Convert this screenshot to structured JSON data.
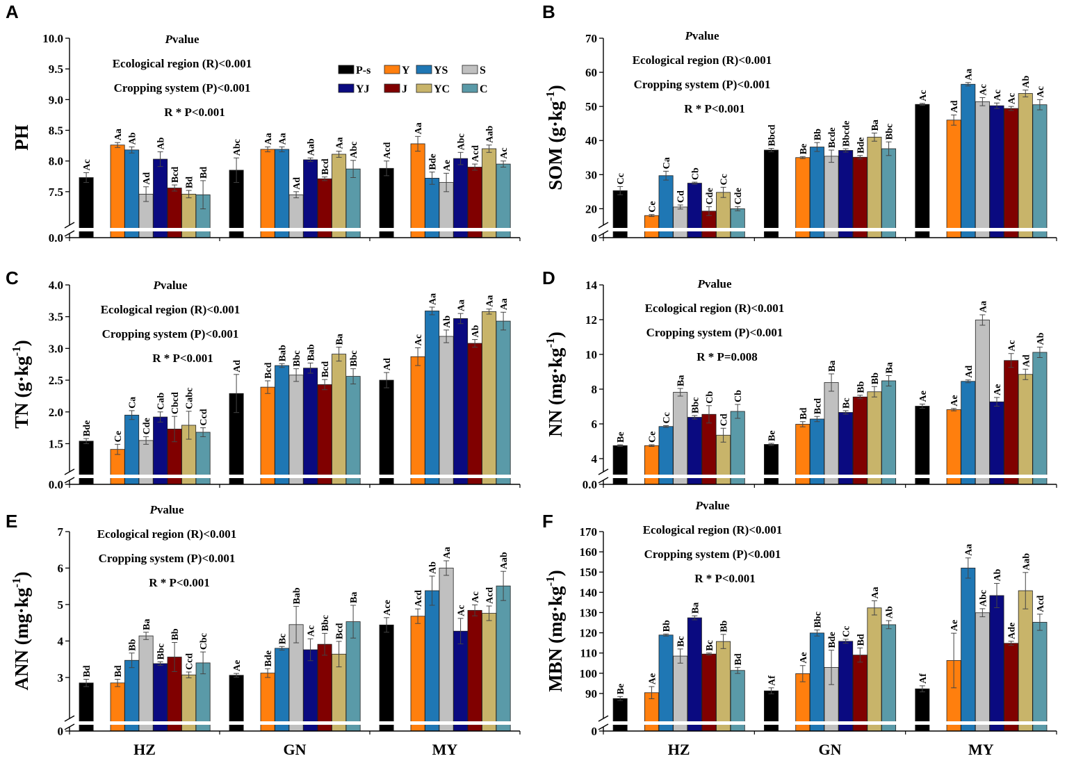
{
  "legend": {
    "items": [
      {
        "key": "P-s",
        "label": "P-s",
        "color": "#000000"
      },
      {
        "key": "Y",
        "label": "Y",
        "color": "#FF7F0E"
      },
      {
        "key": "YS",
        "label": "YS",
        "color": "#1F77B4"
      },
      {
        "key": "S",
        "label": "S",
        "color": "#C0C0C0"
      },
      {
        "key": "YJ",
        "label": "YJ",
        "color": "#0A0A80"
      },
      {
        "key": "J",
        "label": "J",
        "color": "#800000"
      },
      {
        "key": "YC",
        "label": "YC",
        "color": "#C8B46A"
      },
      {
        "key": "C",
        "label": "C",
        "color": "#5A9AA8"
      }
    ]
  },
  "chart_data": [
    {
      "panel": "A",
      "type": "bar",
      "ylabel": "PH",
      "ylabel_sup": "",
      "categories": [
        "HZ",
        "GN",
        "MY"
      ],
      "ylim": [
        7.0,
        10.0
      ],
      "yticks": [
        "10.0",
        "9.5",
        "9.0",
        "8.5",
        "8.0",
        "7.5"
      ],
      "ytick_values": [
        10.0,
        9.5,
        9.0,
        8.5,
        8.0,
        7.5
      ],
      "ybase_label": "0.0",
      "annotation": {
        "title_italic": "P",
        "title_rest": "value",
        "lines": [
          "Ecological region (R)<0.001",
          "Cropping system (P)<0.001",
          "R * P<0.001"
        ]
      },
      "series": [
        {
          "name": "P-s",
          "values": [
            7.73,
            7.85,
            7.88
          ],
          "errors": [
            0.08,
            0.2,
            0.12
          ],
          "letters": [
            "Ac",
            "Abc",
            "Acd"
          ]
        },
        {
          "name": "Y",
          "values": [
            8.26,
            8.19,
            8.28
          ],
          "errors": [
            0.04,
            0.04,
            0.12
          ],
          "letters": [
            "Aa",
            "Aa",
            "Aa"
          ]
        },
        {
          "name": "YS",
          "values": [
            8.18,
            8.19,
            7.72
          ],
          "errors": [
            0.05,
            0.04,
            0.1
          ],
          "letters": [
            "Ab",
            "Aa",
            "Bde"
          ]
        },
        {
          "name": "S",
          "values": [
            7.46,
            7.45,
            7.65
          ],
          "errors": [
            0.12,
            0.05,
            0.15
          ],
          "letters": [
            "Ad",
            "Ad",
            "Ae"
          ]
        },
        {
          "name": "YJ",
          "values": [
            8.03,
            8.02,
            8.04
          ],
          "errors": [
            0.12,
            0.03,
            0.1
          ],
          "letters": [
            "Ab",
            "Aab",
            "Abc"
          ]
        },
        {
          "name": "J",
          "values": [
            7.56,
            7.71,
            7.9
          ],
          "errors": [
            0.05,
            0.03,
            0.05
          ],
          "letters": [
            "Bcd",
            "Bcd",
            "Acd"
          ]
        },
        {
          "name": "YC",
          "values": [
            7.46,
            8.11,
            8.2
          ],
          "errors": [
            0.06,
            0.05,
            0.06
          ],
          "letters": [
            "Bd",
            "Aa",
            "Aab"
          ]
        },
        {
          "name": "C",
          "values": [
            7.45,
            7.87,
            7.95
          ],
          "errors": [
            0.23,
            0.14,
            0.05
          ],
          "letters": [
            "Bd",
            "Abc",
            "Ac"
          ]
        }
      ]
    },
    {
      "panel": "B",
      "type": "bar",
      "ylabel": "SOM (g·kg",
      "ylabel_sup": "-1",
      "categories": [
        "HZ",
        "GN",
        "MY"
      ],
      "ylim": [
        16,
        70
      ],
      "yticks": [
        "70",
        "60",
        "50",
        "40",
        "30",
        "20"
      ],
      "ytick_values": [
        70,
        60,
        50,
        40,
        30,
        20
      ],
      "ybase_label": "0",
      "annotation": {
        "title_italic": "P",
        "title_rest": "value",
        "lines": [
          "Ecological region (R)<0.001",
          "Cropping system (P)<0.001",
          "R * P<0.001"
        ]
      },
      "series": [
        {
          "name": "P-s",
          "values": [
            25.3,
            37.2,
            50.6
          ],
          "errors": [
            1.2,
            0.5,
            0.3
          ],
          "letters": [
            "Cc",
            "Bbcd",
            "Ac"
          ]
        },
        {
          "name": "Y",
          "values": [
            18.0,
            35.0,
            46.0
          ],
          "errors": [
            0.3,
            0.3,
            1.5
          ],
          "letters": [
            "Ce",
            "Be",
            "Ad"
          ]
        },
        {
          "name": "YS",
          "values": [
            29.7,
            38.1,
            56.5
          ],
          "errors": [
            1.3,
            1.3,
            0.5
          ],
          "letters": [
            "Ca",
            "Bb",
            "Aa"
          ]
        },
        {
          "name": "S",
          "values": [
            20.5,
            35.4,
            51.4
          ],
          "errors": [
            0.6,
            1.8,
            1.2
          ],
          "letters": [
            "Cd",
            "Bcde",
            "Ac"
          ]
        },
        {
          "name": "YJ",
          "values": [
            27.5,
            37.1,
            50.2
          ],
          "errors": [
            0.3,
            0.5,
            0.8
          ],
          "letters": [
            "Cb",
            "Bbcde",
            "Ac"
          ]
        },
        {
          "name": "J",
          "values": [
            19.3,
            35.1,
            49.4
          ],
          "errors": [
            1.3,
            0.5,
            0.6
          ],
          "letters": [
            "Cde",
            "Bde",
            "Ac"
          ]
        },
        {
          "name": "YC",
          "values": [
            24.8,
            41.0,
            53.8
          ],
          "errors": [
            1.5,
            1.2,
            1.0
          ],
          "letters": [
            "Cc",
            "Ba",
            "Ab"
          ]
        },
        {
          "name": "C",
          "values": [
            20.0,
            37.6,
            50.5
          ],
          "errors": [
            0.6,
            2.0,
            1.5
          ],
          "letters": [
            "Cde",
            "Bbc",
            "Ac"
          ]
        }
      ]
    },
    {
      "panel": "C",
      "type": "bar",
      "ylabel": "TN (g·kg",
      "ylabel_sup": "-1",
      "categories": [
        "HZ",
        "GN",
        "MY"
      ],
      "ylim": [
        1.1,
        4.0
      ],
      "yticks": [
        "4.0",
        "3.5",
        "3.0",
        "2.5",
        "2.0",
        "1.5"
      ],
      "ytick_values": [
        4.0,
        3.5,
        3.0,
        2.5,
        2.0,
        1.5
      ],
      "ybase_label": "0.0",
      "annotation": {
        "title_italic": "P",
        "title_rest": "value",
        "lines": [
          "Ecological region (R)<0.001",
          "Cropping system (P)<0.001",
          "R * P<0.001"
        ]
      },
      "series": [
        {
          "name": "P-s",
          "values": [
            1.54,
            2.29,
            2.5
          ],
          "errors": [
            0.04,
            0.3,
            0.12
          ],
          "letters": [
            "Bde",
            "Ad",
            "Ad"
          ]
        },
        {
          "name": "Y",
          "values": [
            1.41,
            2.39,
            2.87
          ],
          "errors": [
            0.08,
            0.1,
            0.14
          ],
          "letters": [
            "Ce",
            "Bcd",
            "Ac"
          ]
        },
        {
          "name": "YS",
          "values": [
            1.95,
            2.73,
            3.59
          ],
          "errors": [
            0.07,
            0.03,
            0.06
          ],
          "letters": [
            "Ca",
            "Bab",
            "Aa"
          ]
        },
        {
          "name": "S",
          "values": [
            1.55,
            2.58,
            3.19
          ],
          "errors": [
            0.06,
            0.1,
            0.1
          ],
          "letters": [
            "Cde",
            "Bbc",
            "Ab"
          ]
        },
        {
          "name": "YJ",
          "values": [
            1.92,
            2.69,
            3.47
          ],
          "errors": [
            0.08,
            0.08,
            0.08
          ],
          "letters": [
            "Cab",
            "Bab",
            "Aa"
          ]
        },
        {
          "name": "J",
          "values": [
            1.73,
            2.43,
            3.08
          ],
          "errors": [
            0.2,
            0.08,
            0.06
          ],
          "letters": [
            "Cbcd",
            "Bcd",
            "Ab"
          ]
        },
        {
          "name": "YC",
          "values": [
            1.79,
            2.91,
            3.58
          ],
          "errors": [
            0.22,
            0.11,
            0.04
          ],
          "letters": [
            "Cabc",
            "Ba",
            "Aa"
          ]
        },
        {
          "name": "C",
          "values": [
            1.68,
            2.56,
            3.43
          ],
          "errors": [
            0.07,
            0.12,
            0.14
          ],
          "letters": [
            "Ccd",
            "Bbc",
            "Aa"
          ]
        }
      ]
    },
    {
      "panel": "D",
      "type": "bar",
      "ylabel": "NN (mg·kg",
      "ylabel_sup": "-1",
      "categories": [
        "HZ",
        "GN",
        "MY"
      ],
      "ylim": [
        3.4,
        14
      ],
      "yticks": [
        "14",
        "12",
        "10",
        "8",
        "6",
        "4"
      ],
      "ytick_values": [
        14,
        12,
        10,
        8,
        6,
        4
      ],
      "ybase_label": "0.0",
      "annotation": {
        "title_italic": "P",
        "title_rest": "value",
        "lines": [
          "Ecological region (R)<0.001",
          "Cropping system (P)<0.001",
          "R * P=0.008"
        ]
      },
      "series": [
        {
          "name": "P-s",
          "values": [
            4.75,
            4.82,
            7.02
          ],
          "errors": [
            0.05,
            0.06,
            0.12
          ],
          "letters": [
            "Be",
            "Be",
            "Ae"
          ]
        },
        {
          "name": "Y",
          "values": [
            4.75,
            5.98,
            6.82
          ],
          "errors": [
            0.05,
            0.15,
            0.07
          ],
          "letters": [
            "Ce",
            "Bd",
            "Ae"
          ]
        },
        {
          "name": "YS",
          "values": [
            5.85,
            6.28,
            8.45
          ],
          "errors": [
            0.05,
            0.15,
            0.08
          ],
          "letters": [
            "Cc",
            "Bcd",
            "Ad"
          ]
        },
        {
          "name": "S",
          "values": [
            7.82,
            8.38,
            11.98
          ],
          "errors": [
            0.22,
            0.5,
            0.3
          ],
          "letters": [
            "Ba",
            "Ba",
            "Aa"
          ]
        },
        {
          "name": "YJ",
          "values": [
            6.38,
            6.66,
            7.27
          ],
          "errors": [
            0.1,
            0.1,
            0.25
          ],
          "letters": [
            "Bbc",
            "Bc",
            "Ae"
          ]
        },
        {
          "name": "J",
          "values": [
            6.55,
            7.55,
            9.65
          ],
          "errors": [
            0.5,
            0.1,
            0.4
          ],
          "letters": [
            "Cb",
            "Bb",
            "Ac"
          ]
        },
        {
          "name": "YC",
          "values": [
            5.35,
            7.85,
            8.85
          ],
          "errors": [
            0.4,
            0.3,
            0.3
          ],
          "letters": [
            "Cd",
            "Bb",
            "Ad"
          ]
        },
        {
          "name": "C",
          "values": [
            6.72,
            8.48,
            10.12
          ],
          "errors": [
            0.4,
            0.3,
            0.3
          ],
          "letters": [
            "Cb",
            "Ba",
            "Ab"
          ]
        }
      ]
    },
    {
      "panel": "E",
      "type": "bar",
      "ylabel": "ANN (mg·kg",
      "ylabel_sup": "-1",
      "categories": [
        "HZ",
        "GN",
        "MY"
      ],
      "ylim": [
        1.95,
        7
      ],
      "yticks": [
        "7",
        "6",
        "5",
        "4",
        "3"
      ],
      "ytick_values": [
        7,
        6,
        5,
        4,
        3
      ],
      "ybase_label": "0",
      "annotation": {
        "title_italic": "P",
        "title_rest": "value",
        "lines": [
          "Ecological region (R)<0.001",
          "Cropping system (P)<0.001",
          "R * P<0.001"
        ]
      },
      "series": [
        {
          "name": "P-s",
          "values": [
            2.85,
            3.06,
            4.44
          ],
          "errors": [
            0.1,
            0.05,
            0.2
          ],
          "letters": [
            "Bd",
            "Ae",
            "Ace"
          ]
        },
        {
          "name": "Y",
          "values": [
            2.85,
            3.12,
            4.68
          ],
          "errors": [
            0.1,
            0.12,
            0.2
          ],
          "letters": [
            "Bd",
            "Bde",
            "Acd"
          ]
        },
        {
          "name": "YS",
          "values": [
            3.47,
            3.8,
            5.38
          ],
          "errors": [
            0.2,
            0.05,
            0.4
          ],
          "letters": [
            "Bb",
            "Bc",
            "Ab"
          ]
        },
        {
          "name": "S",
          "values": [
            4.14,
            4.45,
            6.0
          ],
          "errors": [
            0.1,
            0.5,
            0.2
          ],
          "letters": [
            "Ba",
            "Bab",
            "Aa"
          ]
        },
        {
          "name": "YJ",
          "values": [
            3.38,
            3.76,
            4.27
          ],
          "errors": [
            0.05,
            0.3,
            0.35
          ],
          "letters": [
            "Bbc",
            "Ac",
            "Ac"
          ]
        },
        {
          "name": "J",
          "values": [
            3.56,
            3.91,
            4.84
          ],
          "errors": [
            0.4,
            0.3,
            0.15
          ],
          "letters": [
            "Bb",
            "Bbc",
            "Ac"
          ]
        },
        {
          "name": "YC",
          "values": [
            3.07,
            3.64,
            4.76
          ],
          "errors": [
            0.08,
            0.35,
            0.2
          ],
          "letters": [
            "Ccd",
            "Bcd",
            "Acd"
          ]
        },
        {
          "name": "C",
          "values": [
            3.4,
            4.53,
            5.51
          ],
          "errors": [
            0.3,
            0.45,
            0.4
          ],
          "letters": [
            "Cbc",
            "Ba",
            "Aab"
          ]
        }
      ]
    },
    {
      "panel": "F",
      "type": "bar",
      "ylabel": "MBN (mg·kg",
      "ylabel_sup": "-1",
      "categories": [
        "HZ",
        "GN",
        "MY"
      ],
      "ylim": [
        79,
        170
      ],
      "yticks": [
        "170",
        "160",
        "150",
        "140",
        "130",
        "120",
        "110",
        "100",
        "90"
      ],
      "ytick_values": [
        170,
        160,
        150,
        140,
        130,
        120,
        110,
        100,
        90
      ],
      "ybase_label": "0",
      "annotation": {
        "title_italic": "P",
        "title_rest": "value",
        "lines": [
          "Ecological region (R)<0.001",
          "Cropping system (P)<0.001",
          "R * P<0.001"
        ]
      },
      "series": [
        {
          "name": "P-s",
          "values": [
            87.5,
            91.3,
            92.3
          ],
          "errors": [
            1.0,
            1.5,
            1.5
          ],
          "letters": [
            "Be",
            "Af",
            "Af"
          ]
        },
        {
          "name": "Y",
          "values": [
            90.4,
            99.8,
            106.3
          ],
          "errors": [
            3.0,
            4.0,
            13.5
          ],
          "letters": [
            "Ae",
            "Ae",
            "Ae"
          ]
        },
        {
          "name": "YS",
          "values": [
            118.9,
            119.9,
            152.0
          ],
          "errors": [
            0.5,
            1.5,
            5.0
          ],
          "letters": [
            "Bb",
            "Bbc",
            "Aa"
          ]
        },
        {
          "name": "S",
          "values": [
            108.5,
            102.9,
            129.9
          ],
          "errors": [
            3.5,
            8.5,
            2.0
          ],
          "letters": [
            "Bc",
            "Bde",
            "Abc"
          ]
        },
        {
          "name": "YJ",
          "values": [
            127.4,
            115.8,
            138.4
          ],
          "errors": [
            1.0,
            1.0,
            6.0
          ],
          "letters": [
            "Ba",
            "Cc",
            "Ab"
          ]
        },
        {
          "name": "J",
          "values": [
            109.5,
            109.0,
            114.8
          ],
          "errors": [
            0.5,
            3.5,
            1.0
          ],
          "letters": [
            "Bc",
            "Bd",
            "Ade"
          ]
        },
        {
          "name": "YC",
          "values": [
            115.7,
            132.3,
            140.8
          ],
          "errors": [
            3.5,
            3.5,
            9.0
          ],
          "letters": [
            "Bb",
            "Aa",
            "Aab"
          ]
        },
        {
          "name": "C",
          "values": [
            101.4,
            124.0,
            125.2
          ],
          "errors": [
            1.5,
            2.0,
            4.0
          ],
          "letters": [
            "Bd",
            "Ab",
            "Acd"
          ]
        }
      ]
    }
  ]
}
